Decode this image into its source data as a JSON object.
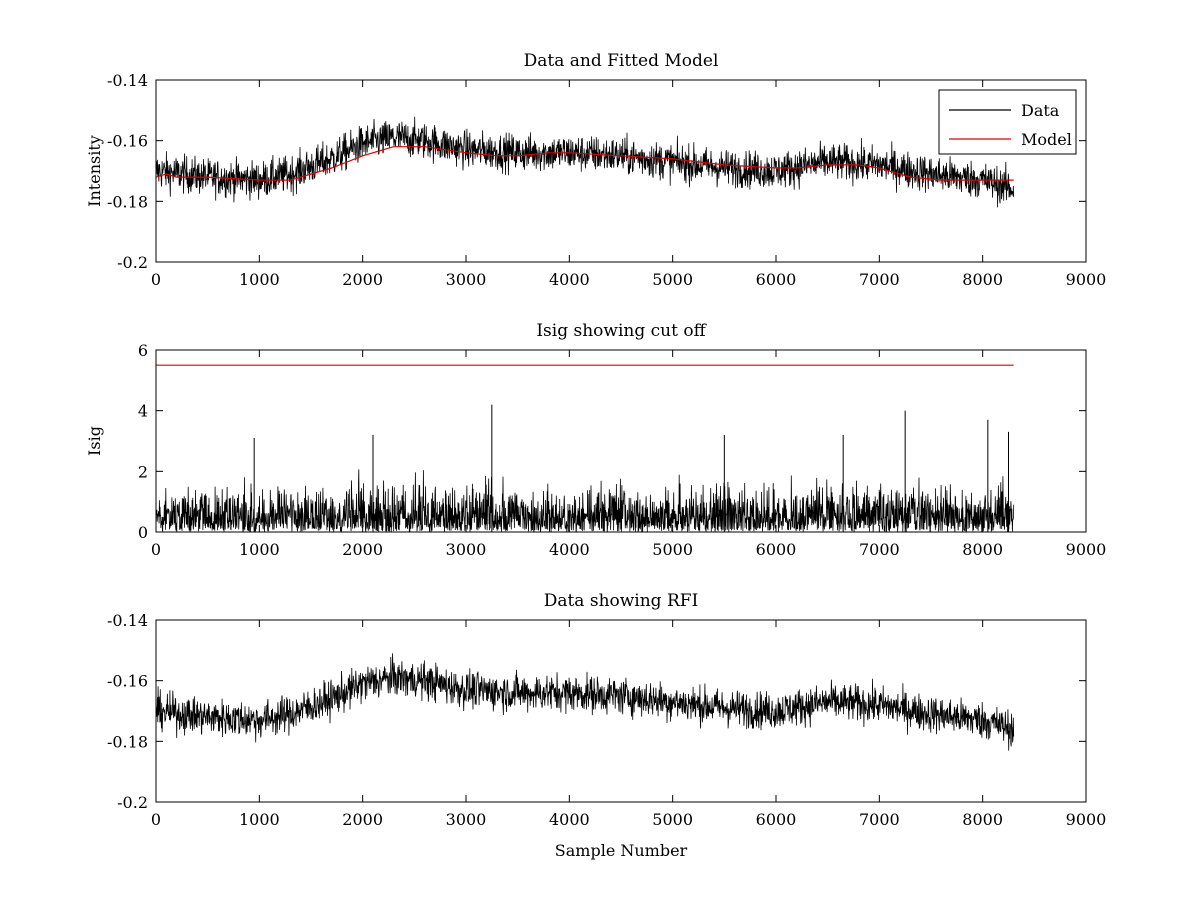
{
  "figure": {
    "background": "#ffffff"
  },
  "chart_data": [
    {
      "id": "top",
      "type": "line",
      "title": "Data and Fitted Model",
      "xlabel": "",
      "ylabel": "Intensity",
      "xlim": [
        0,
        9000
      ],
      "ylim": [
        -0.2,
        -0.14
      ],
      "y_reversed": true,
      "xticks": [
        0,
        1000,
        2000,
        3000,
        4000,
        5000,
        6000,
        7000,
        8000,
        9000
      ],
      "xtick_labels": [
        "0",
        "1000",
        "2000",
        "3000",
        "4000",
        "5000",
        "6000",
        "7000",
        "8000",
        "9000"
      ],
      "yticks": [
        -0.14,
        -0.16,
        -0.18,
        -0.2
      ],
      "ytick_labels": [
        "-0.14",
        "-0.16",
        "-0.18",
        "-0.2"
      ],
      "grid": false,
      "legend": {
        "position": "top-right",
        "entries": [
          {
            "label": "Data",
            "color": "#000000"
          },
          {
            "label": "Model",
            "color": "#e00000"
          }
        ]
      },
      "series": [
        {
          "name": "Data",
          "color": "#000000",
          "style": "noisy-line",
          "x": [
            0,
            500,
            1000,
            1300,
            1700,
            2000,
            2300,
            2600,
            3000,
            3500,
            4000,
            4500,
            5000,
            5500,
            6000,
            6500,
            7000,
            7500,
            8000,
            8300
          ],
          "y": [
            -0.17,
            -0.172,
            -0.173,
            -0.171,
            -0.166,
            -0.161,
            -0.159,
            -0.16,
            -0.163,
            -0.164,
            -0.164,
            -0.165,
            -0.167,
            -0.169,
            -0.17,
            -0.167,
            -0.168,
            -0.171,
            -0.173,
            -0.176
          ],
          "noise_amplitude": 0.004
        },
        {
          "name": "Model",
          "color": "#e00000",
          "style": "line",
          "x": [
            0,
            100,
            200,
            500,
            1000,
            1300,
            1700,
            2000,
            2300,
            2600,
            3000,
            3300,
            3500,
            3800,
            4000,
            4500,
            5000,
            5500,
            6000,
            6200,
            6500,
            6800,
            7000,
            7300,
            7600,
            8000,
            8300
          ],
          "y": [
            -0.172,
            -0.171,
            -0.172,
            -0.172,
            -0.173,
            -0.173,
            -0.169,
            -0.165,
            -0.162,
            -0.162,
            -0.164,
            -0.165,
            -0.165,
            -0.164,
            -0.164,
            -0.165,
            -0.166,
            -0.168,
            -0.169,
            -0.169,
            -0.168,
            -0.168,
            -0.169,
            -0.172,
            -0.173,
            -0.173,
            -0.173
          ]
        }
      ]
    },
    {
      "id": "middle",
      "type": "line",
      "title": "Isig showing cut off",
      "xlabel": "",
      "ylabel": "Isig",
      "xlim": [
        0,
        9000
      ],
      "ylim": [
        0,
        6
      ],
      "y_reversed": false,
      "xticks": [
        0,
        1000,
        2000,
        3000,
        4000,
        5000,
        6000,
        7000,
        8000,
        9000
      ],
      "xtick_labels": [
        "0",
        "1000",
        "2000",
        "3000",
        "4000",
        "5000",
        "6000",
        "7000",
        "8000",
        "9000"
      ],
      "yticks": [
        0,
        2,
        4,
        6
      ],
      "ytick_labels": [
        "0",
        "2",
        "4",
        "6"
      ],
      "grid": false,
      "series": [
        {
          "name": "Isig",
          "color": "#000000",
          "style": "spiky",
          "x_range": [
            0,
            8300
          ],
          "typical_max": 2.5,
          "peaks": [
            {
              "x": 3250,
              "y": 4.2
            },
            {
              "x": 7250,
              "y": 4.0
            },
            {
              "x": 8050,
              "y": 3.7
            },
            {
              "x": 8250,
              "y": 3.3
            },
            {
              "x": 950,
              "y": 3.1
            },
            {
              "x": 2100,
              "y": 3.2
            },
            {
              "x": 5500,
              "y": 3.2
            },
            {
              "x": 6650,
              "y": 3.2
            }
          ]
        },
        {
          "name": "cut off",
          "color": "#e00000",
          "style": "line",
          "x": [
            0,
            8300
          ],
          "y": [
            5.5,
            5.5
          ]
        }
      ]
    },
    {
      "id": "bottom",
      "type": "line",
      "title": "Data showing RFI",
      "xlabel": "Sample Number",
      "ylabel": "",
      "xlim": [
        0,
        9000
      ],
      "ylim": [
        -0.2,
        -0.14
      ],
      "y_reversed": true,
      "xticks": [
        0,
        1000,
        2000,
        3000,
        4000,
        5000,
        6000,
        7000,
        8000,
        9000
      ],
      "xtick_labels": [
        "0",
        "1000",
        "2000",
        "3000",
        "4000",
        "5000",
        "6000",
        "7000",
        "8000",
        "9000"
      ],
      "yticks": [
        -0.14,
        -0.16,
        -0.18,
        -0.2
      ],
      "ytick_labels": [
        "-0.14",
        "-0.16",
        "-0.18",
        "-0.2"
      ],
      "grid": false,
      "series": [
        {
          "name": "Data",
          "color": "#000000",
          "style": "noisy-line",
          "x": [
            0,
            500,
            1000,
            1300,
            1700,
            2000,
            2300,
            2600,
            3000,
            3500,
            4000,
            4500,
            5000,
            5500,
            6000,
            6500,
            7000,
            7500,
            8000,
            8300
          ],
          "y": [
            -0.17,
            -0.172,
            -0.173,
            -0.171,
            -0.166,
            -0.161,
            -0.159,
            -0.16,
            -0.163,
            -0.164,
            -0.164,
            -0.165,
            -0.167,
            -0.169,
            -0.17,
            -0.167,
            -0.168,
            -0.171,
            -0.173,
            -0.176
          ],
          "noise_amplitude": 0.004
        }
      ]
    }
  ]
}
